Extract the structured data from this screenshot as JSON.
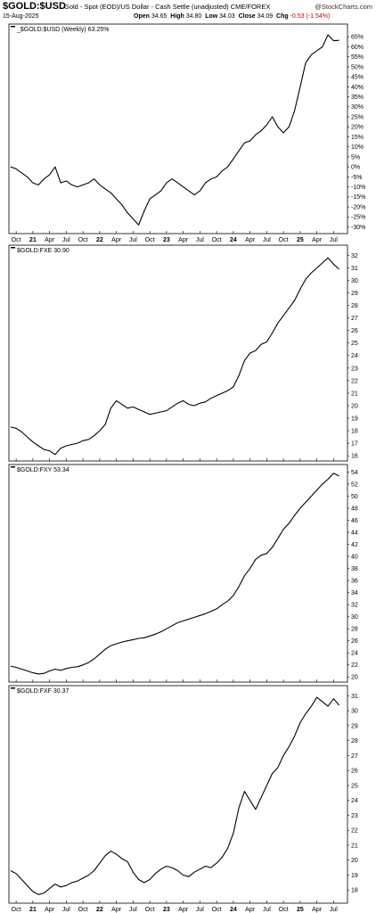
{
  "header": {
    "symbol": "$GOLD:$USD",
    "description": "Gold - Spot (EOD)/US Dollar - Cash Settle (unadjusted) CME/FOREX",
    "brand": "@StockCharts.com",
    "date": "15-Aug-2025",
    "open_label": "Open",
    "open": "34.65",
    "high_label": "High",
    "high": "34.80",
    "low_label": "Low",
    "low": "34.03",
    "close_label": "Close",
    "close": "34.09",
    "chg_label": "Chg",
    "chg": "-0.53 (-1.54%)",
    "chg_color": "#c00000"
  },
  "x_axis": {
    "labels": [
      "Oct",
      "21",
      "Apr",
      "Jul",
      "Oct",
      "22",
      "Apr",
      "Jul",
      "Oct",
      "23",
      "Apr",
      "Jul",
      "Oct",
      "24",
      "Apr",
      "Jul",
      "Oct",
      "25",
      "Apr",
      "Jul"
    ],
    "positions": [
      0,
      3,
      6,
      9,
      12,
      15,
      18,
      21,
      24,
      27,
      30,
      33,
      36,
      39,
      42,
      45,
      48,
      51,
      54,
      57
    ],
    "year_labels": [
      "21",
      "22",
      "23",
      "24",
      "25"
    ]
  },
  "chart_data": [
    {
      "type": "line",
      "legend": "_$GOLD:$USD (Weekly) 63.25%",
      "ylim": [
        -32,
        70
      ],
      "yticks": [
        -30,
        -25,
        -20,
        -15,
        -10,
        -5,
        0,
        5,
        10,
        15,
        20,
        25,
        30,
        35,
        40,
        45,
        50,
        55,
        60,
        65
      ],
      "ytick_labels": [
        "-30%",
        "-25%",
        "-20%",
        "-15%",
        "-10%",
        "-5%",
        "0%",
        "5%",
        "10%",
        "15%",
        "20%",
        "25%",
        "30%",
        "35%",
        "40%",
        "45%",
        "50%",
        "55%",
        "60%",
        "65%"
      ],
      "x_months": [
        -1,
        0,
        1,
        2,
        3,
        4,
        5,
        6,
        7,
        8,
        9,
        10,
        11,
        12,
        13,
        14,
        15,
        16,
        17,
        18,
        19,
        20,
        21,
        22,
        23,
        24,
        25,
        26,
        27,
        28,
        29,
        30,
        31,
        32,
        33,
        34,
        35,
        36,
        37,
        38,
        39,
        40,
        41,
        42,
        43,
        44,
        45,
        46,
        47,
        48,
        49,
        50,
        51,
        52,
        53,
        54,
        55,
        56,
        57,
        58
      ],
      "values": [
        0,
        -1,
        -3,
        -5,
        -8,
        -9,
        -6,
        -4,
        0,
        -8,
        -7,
        -9,
        -10,
        -9,
        -8,
        -6,
        -9,
        -11,
        -13,
        -16,
        -19,
        -23,
        -26,
        -29,
        -22,
        -16,
        -14,
        -12,
        -8,
        -6,
        -8,
        -10,
        -12,
        -14,
        -12,
        -8,
        -6,
        -5,
        -2,
        0,
        4,
        8,
        12,
        13,
        16,
        18,
        21,
        25,
        20,
        17,
        20,
        28,
        40,
        52,
        56,
        58,
        60,
        66,
        63,
        63.25
      ]
    },
    {
      "type": "line",
      "legend": "$GOLD:FXE 30.90",
      "ylim": [
        15.8,
        32.6
      ],
      "yticks": [
        16,
        17,
        18,
        19,
        20,
        21,
        22,
        23,
        24,
        25,
        26,
        27,
        28,
        29,
        30,
        31,
        32
      ],
      "ytick_labels": [
        "16",
        "17",
        "18",
        "19",
        "20",
        "21",
        "22",
        "23",
        "24",
        "25",
        "26",
        "27",
        "28",
        "29",
        "30",
        "31",
        "32"
      ],
      "x_months": [
        -1,
        0,
        1,
        2,
        3,
        4,
        5,
        6,
        7,
        8,
        9,
        10,
        11,
        12,
        13,
        14,
        15,
        16,
        17,
        18,
        19,
        20,
        21,
        22,
        23,
        24,
        25,
        26,
        27,
        28,
        29,
        30,
        31,
        32,
        33,
        34,
        35,
        36,
        37,
        38,
        39,
        40,
        41,
        42,
        43,
        44,
        45,
        46,
        47,
        48,
        49,
        50,
        51,
        52,
        53,
        54,
        55,
        56,
        57,
        58
      ],
      "values": [
        18.3,
        18.2,
        17.9,
        17.5,
        17.1,
        16.8,
        16.5,
        16.4,
        16.1,
        16.6,
        16.8,
        16.9,
        17.0,
        17.2,
        17.3,
        17.6,
        18.0,
        18.5,
        19.8,
        20.4,
        20.1,
        19.8,
        19.9,
        19.7,
        19.5,
        19.3,
        19.4,
        19.5,
        19.6,
        19.9,
        20.2,
        20.4,
        20.1,
        20.0,
        20.2,
        20.3,
        20.6,
        20.8,
        21.0,
        21.2,
        21.5,
        22.4,
        23.6,
        24.2,
        24.4,
        24.9,
        25.1,
        25.8,
        26.6,
        27.2,
        27.8,
        28.4,
        29.3,
        30.1,
        30.6,
        31.0,
        31.4,
        31.8,
        31.3,
        30.9
      ]
    },
    {
      "type": "line",
      "legend": "$GOLD:FXY 53.34",
      "ylim": [
        19.6,
        54.8
      ],
      "yticks": [
        20,
        22,
        24,
        26,
        28,
        30,
        32,
        34,
        36,
        38,
        40,
        42,
        44,
        46,
        48,
        50,
        52,
        54
      ],
      "ytick_labels": [
        "20",
        "22",
        "24",
        "26",
        "28",
        "30",
        "32",
        "34",
        "36",
        "38",
        "40",
        "42",
        "44",
        "46",
        "48",
        "50",
        "52",
        "54"
      ],
      "x_months": [
        -1,
        0,
        1,
        2,
        3,
        4,
        5,
        6,
        7,
        8,
        9,
        10,
        11,
        12,
        13,
        14,
        15,
        16,
        17,
        18,
        19,
        20,
        21,
        22,
        23,
        24,
        25,
        26,
        27,
        28,
        29,
        30,
        31,
        32,
        33,
        34,
        35,
        36,
        37,
        38,
        39,
        40,
        41,
        42,
        43,
        44,
        45,
        46,
        47,
        48,
        49,
        50,
        51,
        52,
        53,
        54,
        55,
        56,
        57,
        58
      ],
      "values": [
        21.8,
        21.6,
        21.3,
        21.0,
        20.7,
        20.5,
        20.6,
        21.0,
        21.3,
        21.1,
        21.4,
        21.6,
        21.7,
        22.0,
        22.4,
        23.0,
        23.8,
        24.6,
        25.2,
        25.5,
        25.8,
        26.0,
        26.2,
        26.4,
        26.5,
        26.8,
        27.1,
        27.5,
        28.0,
        28.5,
        29.0,
        29.3,
        29.6,
        29.9,
        30.2,
        30.5,
        30.9,
        31.3,
        32.0,
        32.6,
        33.5,
        35.0,
        36.8,
        38.0,
        39.5,
        40.2,
        40.5,
        41.5,
        43.0,
        44.5,
        45.5,
        46.8,
        48.0,
        49.0,
        50.0,
        51.0,
        52.0,
        52.8,
        53.8,
        53.34
      ]
    },
    {
      "type": "line",
      "legend": "$GOLD:FXF 30.37",
      "ylim": [
        17.3,
        31.5
      ],
      "yticks": [
        18,
        19,
        20,
        21,
        22,
        23,
        24,
        25,
        26,
        27,
        28,
        29,
        30,
        31
      ],
      "ytick_labels": [
        "18",
        "19",
        "20",
        "21",
        "22",
        "23",
        "24",
        "25",
        "26",
        "27",
        "28",
        "29",
        "30",
        "31"
      ],
      "x_months": [
        -1,
        0,
        1,
        2,
        3,
        4,
        5,
        6,
        7,
        8,
        9,
        10,
        11,
        12,
        13,
        14,
        15,
        16,
        17,
        18,
        19,
        20,
        21,
        22,
        23,
        24,
        25,
        26,
        27,
        28,
        29,
        30,
        31,
        32,
        33,
        34,
        35,
        36,
        37,
        38,
        39,
        40,
        41,
        42,
        43,
        44,
        45,
        46,
        47,
        48,
        49,
        50,
        51,
        52,
        53,
        54,
        55,
        56,
        57,
        58
      ],
      "values": [
        19.3,
        19.1,
        18.7,
        18.3,
        17.9,
        17.7,
        17.8,
        18.1,
        18.4,
        18.2,
        18.3,
        18.5,
        18.6,
        18.8,
        19.0,
        19.3,
        19.8,
        20.3,
        20.6,
        20.4,
        20.1,
        19.9,
        19.2,
        18.7,
        18.5,
        18.7,
        19.1,
        19.4,
        19.6,
        19.5,
        19.3,
        19.0,
        18.9,
        19.2,
        19.4,
        19.6,
        19.5,
        19.8,
        20.2,
        20.8,
        21.8,
        23.5,
        24.6,
        24.0,
        23.4,
        24.2,
        25.0,
        25.8,
        26.2,
        27.0,
        27.6,
        28.3,
        29.2,
        29.8,
        30.3,
        30.9,
        30.6,
        30.3,
        30.8,
        30.37
      ]
    }
  ]
}
